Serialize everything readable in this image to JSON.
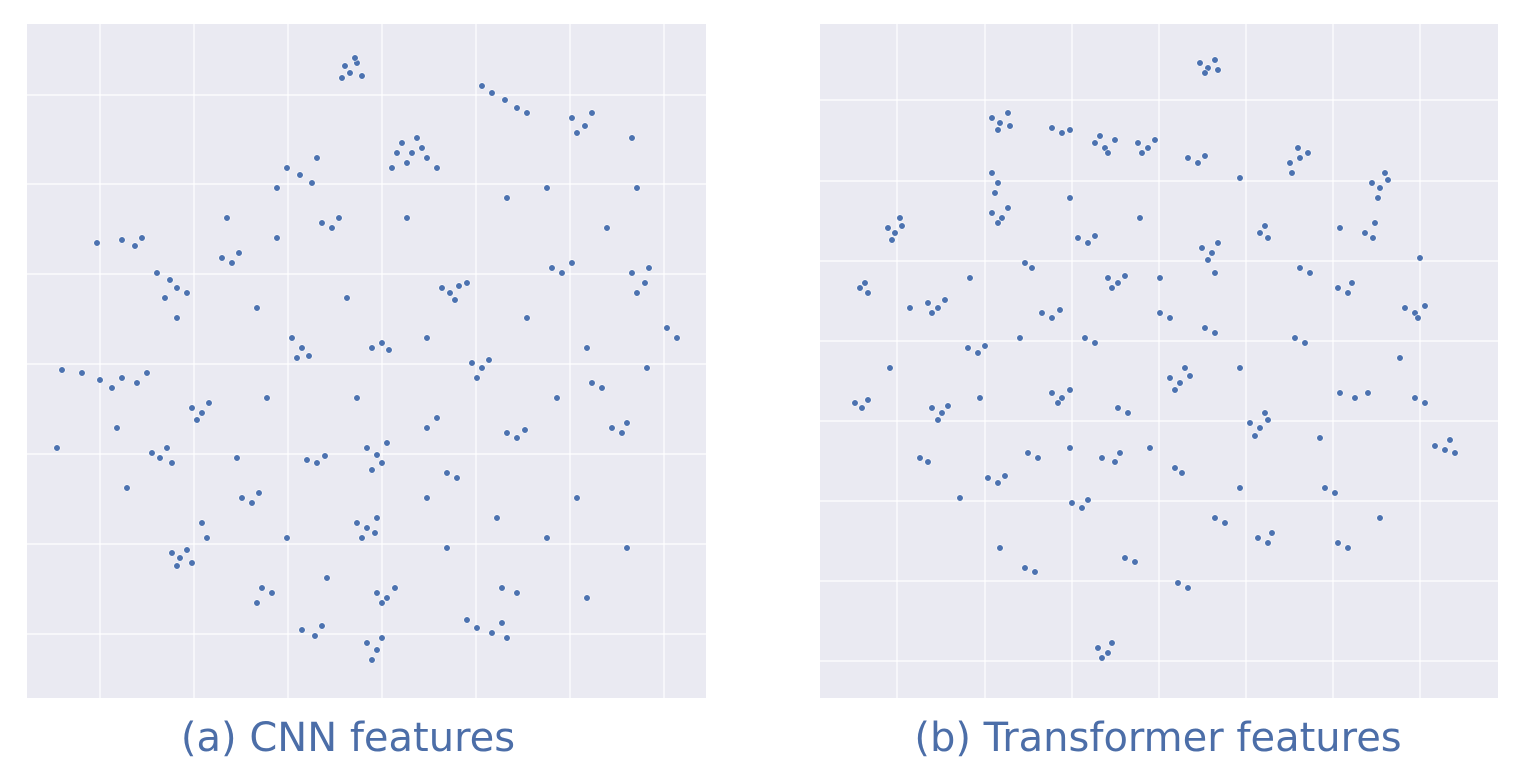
{
  "chart_data": [
    {
      "type": "scatter",
      "caption": "(a) CNN features",
      "color": "#4c72b0",
      "grid": true,
      "xlim": [
        0,
        679
      ],
      "ylim": [
        0,
        674
      ],
      "x": [
        318,
        323,
        330,
        315,
        335,
        328,
        375,
        385,
        395,
        380,
        400,
        370,
        390,
        410,
        365,
        465,
        478,
        490,
        500,
        455,
        545,
        558,
        565,
        550,
        605,
        610,
        605,
        618,
        622,
        610,
        640,
        130,
        143,
        150,
        160,
        138,
        95,
        108,
        115,
        70,
        260,
        273,
        285,
        290,
        250,
        415,
        423,
        432,
        428,
        440,
        265,
        275,
        282,
        270,
        345,
        355,
        362,
        445,
        455,
        462,
        450,
        165,
        175,
        182,
        170,
        55,
        73,
        85,
        95,
        110,
        120,
        35,
        125,
        133,
        140,
        145,
        340,
        350,
        355,
        345,
        360,
        280,
        290,
        298,
        480,
        490,
        498,
        330,
        340,
        348,
        335,
        350,
        145,
        153,
        160,
        150,
        165,
        175,
        180,
        215,
        225,
        232,
        350,
        360,
        368,
        355,
        450,
        465,
        475,
        480,
        440,
        275,
        288,
        295,
        340,
        350,
        355,
        345,
        585,
        595,
        600,
        565,
        575,
        525,
        535,
        545,
        195,
        205,
        212,
        295,
        305,
        312,
        420,
        430,
        475,
        490,
        235,
        245,
        230,
        200,
        250,
        380,
        480,
        520,
        580,
        150,
        230,
        320,
        400,
        500,
        560,
        620,
        240,
        330,
        410,
        530,
        90,
        210,
        400,
        470,
        550,
        260,
        420,
        520,
        300,
        100,
        560,
        600,
        400,
        30,
        650
      ],
      "values": [
        632,
        625,
        635,
        620,
        622,
        640,
        555,
        545,
        550,
        535,
        540,
        545,
        560,
        530,
        530,
        605,
        598,
        590,
        585,
        612,
        580,
        572,
        585,
        565,
        560,
        510,
        425,
        415,
        430,
        405,
        370,
        425,
        418,
        410,
        405,
        400,
        458,
        452,
        460,
        455,
        530,
        523,
        515,
        540,
        510,
        410,
        405,
        412,
        398,
        415,
        360,
        350,
        342,
        340,
        350,
        355,
        348,
        335,
        330,
        338,
        320,
        290,
        285,
        295,
        278,
        325,
        318,
        310,
        320,
        315,
        325,
        328,
        245,
        240,
        250,
        235,
        250,
        243,
        235,
        228,
        255,
        238,
        235,
        242,
        265,
        260,
        268,
        175,
        170,
        165,
        160,
        180,
        145,
        140,
        148,
        132,
        135,
        175,
        160,
        200,
        195,
        205,
        105,
        100,
        110,
        95,
        70,
        65,
        75,
        60,
        78,
        68,
        62,
        72,
        55,
        48,
        60,
        38,
        270,
        265,
        275,
        315,
        310,
        430,
        425,
        435,
        440,
        435,
        445,
        475,
        470,
        480,
        225,
        220,
        110,
        105,
        110,
        105,
        95,
        480,
        460,
        480,
        500,
        510,
        470,
        380,
        390,
        400,
        360,
        380,
        350,
        330,
        300,
        300,
        280,
        300,
        270,
        240,
        200,
        180,
        200,
        160,
        150,
        160,
        120,
        210,
        100,
        150,
        270,
        250,
        360
      ]
    },
    {
      "type": "scatter",
      "caption": "(b) Transformer features",
      "color": "#4c72b0",
      "grid": true,
      "xlim": [
        0,
        678
      ],
      "ylim": [
        0,
        674
      ],
      "x": [
        380,
        388,
        395,
        385,
        398,
        172,
        180,
        188,
        178,
        190,
        232,
        242,
        250,
        275,
        285,
        295,
        288,
        280,
        318,
        328,
        335,
        322,
        368,
        378,
        385,
        470,
        480,
        488,
        478,
        472,
        552,
        560,
        568,
        558,
        565,
        68,
        75,
        82,
        72,
        80,
        40,
        48,
        45,
        172,
        178,
        175,
        172,
        182,
        188,
        178,
        258,
        268,
        275,
        288,
        298,
        305,
        292,
        382,
        392,
        398,
        388,
        395,
        440,
        448,
        445,
        545,
        553,
        555,
        518,
        528,
        532,
        108,
        118,
        125,
        112,
        205,
        212,
        222,
        232,
        240,
        265,
        275,
        340,
        350,
        385,
        395,
        480,
        490,
        585,
        595,
        605,
        598,
        148,
        158,
        165,
        350,
        360,
        370,
        355,
        365,
        232,
        242,
        250,
        238,
        475,
        485,
        35,
        42,
        48,
        112,
        122,
        128,
        118,
        298,
        308,
        430,
        440,
        448,
        435,
        445,
        520,
        535,
        548,
        595,
        605,
        615,
        625,
        635,
        630,
        100,
        108,
        168,
        178,
        185,
        208,
        218,
        282,
        295,
        300,
        355,
        362,
        252,
        262,
        268,
        505,
        515,
        395,
        405,
        438,
        448,
        452,
        518,
        528,
        305,
        315,
        205,
        215,
        358,
        368,
        278,
        288,
        292,
        282,
        90,
        150,
        250,
        320,
        420,
        520,
        340,
        160,
        200,
        330,
        420,
        500,
        580,
        70,
        250,
        180,
        420,
        560,
        140,
        600
      ],
      "values": [
        635,
        630,
        638,
        625,
        628,
        580,
        575,
        585,
        568,
        572,
        570,
        565,
        568,
        555,
        550,
        558,
        545,
        562,
        555,
        550,
        558,
        545,
        540,
        535,
        542,
        535,
        540,
        545,
        550,
        525,
        515,
        510,
        518,
        500,
        525,
        470,
        465,
        472,
        458,
        480,
        410,
        405,
        415,
        525,
        515,
        505,
        485,
        480,
        490,
        475,
        460,
        455,
        462,
        420,
        415,
        422,
        410,
        450,
        445,
        455,
        438,
        425,
        465,
        460,
        472,
        465,
        460,
        475,
        410,
        405,
        415,
        395,
        390,
        398,
        385,
        435,
        430,
        385,
        380,
        388,
        360,
        355,
        385,
        380,
        370,
        365,
        430,
        425,
        390,
        385,
        392,
        380,
        350,
        345,
        352,
        320,
        315,
        322,
        308,
        330,
        305,
        300,
        308,
        295,
        360,
        355,
        295,
        290,
        298,
        290,
        285,
        292,
        278,
        290,
        285,
        275,
        270,
        278,
        262,
        285,
        305,
        300,
        305,
        300,
        295,
        252,
        248,
        245,
        258,
        240,
        236,
        220,
        215,
        222,
        245,
        240,
        240,
        236,
        245,
        230,
        225,
        195,
        190,
        198,
        210,
        205,
        180,
        175,
        160,
        155,
        165,
        155,
        150,
        140,
        136,
        130,
        126,
        115,
        110,
        50,
        45,
        55,
        40,
        390,
        420,
        500,
        480,
        520,
        470,
        420,
        300,
        360,
        250,
        330,
        260,
        340,
        330,
        250,
        150,
        210,
        180,
        200,
        440
      ]
    }
  ]
}
